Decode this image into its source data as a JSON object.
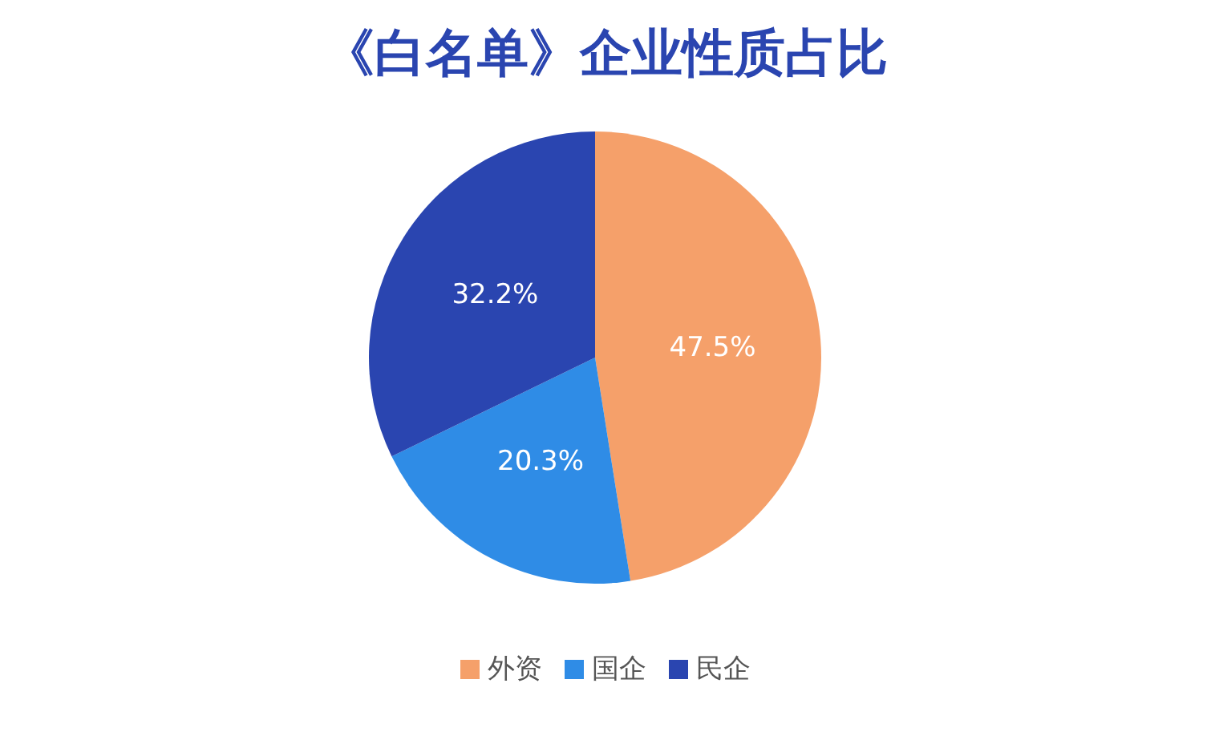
{
  "chart_data": {
    "type": "pie",
    "title": "《白名单》企业性质占比",
    "categories": [
      "外资",
      "国企",
      "民企"
    ],
    "values": [
      47.5,
      20.3,
      32.2
    ],
    "value_labels": [
      "47.5%",
      "20.3%",
      "32.2%"
    ],
    "colors": [
      "#f5a06a",
      "#2f8ce6",
      "#2a45b0"
    ],
    "legend": "bottom"
  }
}
